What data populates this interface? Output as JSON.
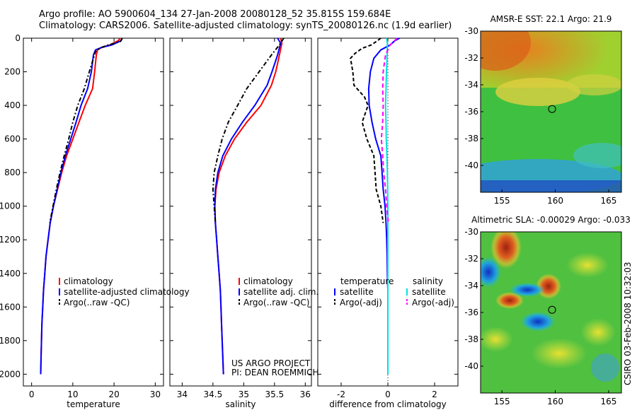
{
  "title_line1": "Argo profile: AO 5900604_134 27-Jan-2008 20080128_52 35.815S 159.684E",
  "title_line2": "Climatology: CARS2006. Satellite-adjusted climatology: synTS_20080126.nc (1.9d earlier)",
  "side_label": "CSIRO 03-Feb-2008 10:32:03",
  "colors": {
    "climatology": "#ff0000",
    "satellite": "#0000ff",
    "argo": "#000000",
    "sal_satellite": "#00e0e0",
    "sal_argo": "#ff00ff"
  },
  "chart_data": [
    {
      "type": "line",
      "xlabel": "temperature",
      "ylabel": "",
      "xlim": [
        -2,
        32
      ],
      "ylim": [
        2070,
        0
      ],
      "xticks": [
        0,
        10,
        20,
        30
      ],
      "yticks": [
        0,
        200,
        400,
        600,
        800,
        1000,
        1200,
        1400,
        1600,
        1800,
        2000
      ],
      "legend": [
        "climatology",
        "satellite-adjusted climatology",
        "Argo(..raw -QC)"
      ],
      "series": [
        {
          "name": "climatology",
          "color_key": "climatology",
          "dash": "",
          "points": [
            [
              21.5,
              0
            ],
            [
              21.0,
              15
            ],
            [
              19.0,
              40
            ],
            [
              17.0,
              55
            ],
            [
              16.0,
              70
            ],
            [
              15.7,
              100
            ],
            [
              15.3,
              200
            ],
            [
              14.8,
              300
            ],
            [
              13.0,
              400
            ],
            [
              11.5,
              500
            ],
            [
              10.0,
              600
            ],
            [
              8.5,
              700
            ],
            [
              7.3,
              800
            ],
            [
              6.3,
              900
            ],
            [
              5.3,
              1000
            ],
            [
              4.5,
              1100
            ],
            [
              4.0,
              1200
            ],
            [
              3.5,
              1300
            ],
            [
              3.2,
              1400
            ],
            [
              2.9,
              1500
            ],
            [
              2.7,
              1600
            ],
            [
              2.5,
              1700
            ],
            [
              2.4,
              1800
            ],
            [
              2.3,
              1900
            ],
            [
              2.2,
              2000
            ]
          ]
        },
        {
          "name": "satellite-adjusted climatology",
          "color_key": "satellite",
          "dash": "",
          "points": [
            [
              22.0,
              0
            ],
            [
              21.7,
              15
            ],
            [
              19.5,
              40
            ],
            [
              17.0,
              55
            ],
            [
              15.5,
              70
            ],
            [
              15.0,
              100
            ],
            [
              14.5,
              200
            ],
            [
              13.6,
              300
            ],
            [
              12.0,
              400
            ],
            [
              10.8,
              500
            ],
            [
              9.5,
              600
            ],
            [
              8.2,
              700
            ],
            [
              7.1,
              800
            ],
            [
              6.2,
              900
            ],
            [
              5.3,
              1000
            ],
            [
              4.5,
              1100
            ],
            [
              4.0,
              1200
            ],
            [
              3.5,
              1300
            ],
            [
              3.2,
              1400
            ],
            [
              2.9,
              1500
            ],
            [
              2.7,
              1600
            ],
            [
              2.5,
              1700
            ],
            [
              2.4,
              1800
            ],
            [
              2.3,
              1900
            ],
            [
              2.2,
              2000
            ]
          ]
        },
        {
          "name": "Argo(..raw -QC)",
          "color_key": "argo",
          "dash": "6,3,2,3",
          "points": [
            [
              22.0,
              0
            ],
            [
              21.5,
              20
            ],
            [
              18.0,
              45
            ],
            [
              16.5,
              60
            ],
            [
              15.5,
              80
            ],
            [
              15.0,
              120
            ],
            [
              14.0,
              200
            ],
            [
              12.8,
              300
            ],
            [
              11.2,
              400
            ],
            [
              10.0,
              500
            ],
            [
              9.0,
              600
            ],
            [
              7.9,
              700
            ],
            [
              6.9,
              800
            ],
            [
              6.0,
              900
            ],
            [
              5.2,
              1000
            ],
            [
              4.4,
              1100
            ]
          ]
        }
      ]
    },
    {
      "type": "line",
      "xlabel": "salinity",
      "ylabel": "",
      "xlim": [
        33.8,
        36.1
      ],
      "ylim": [
        2070,
        0
      ],
      "xticks": [
        34,
        34.5,
        35,
        35.5,
        36
      ],
      "yticks": [],
      "legend": [
        "climatology",
        "satellite adj. clim.",
        "Argo(..raw -QC)"
      ],
      "series": [
        {
          "name": "climatology",
          "color_key": "climatology",
          "dash": "",
          "points": [
            [
              35.6,
              0
            ],
            [
              35.62,
              30
            ],
            [
              35.58,
              100
            ],
            [
              35.52,
              200
            ],
            [
              35.45,
              280
            ],
            [
              35.28,
              400
            ],
            [
              35.05,
              500
            ],
            [
              34.85,
              600
            ],
            [
              34.7,
              700
            ],
            [
              34.6,
              800
            ],
            [
              34.55,
              900
            ],
            [
              34.53,
              1000
            ],
            [
              34.54,
              1100
            ],
            [
              34.56,
              1200
            ],
            [
              34.58,
              1300
            ],
            [
              34.6,
              1400
            ],
            [
              34.62,
              1500
            ],
            [
              34.63,
              1600
            ],
            [
              34.64,
              1700
            ],
            [
              34.65,
              1800
            ],
            [
              34.66,
              1900
            ],
            [
              34.67,
              2000
            ]
          ]
        },
        {
          "name": "satellite adj. clim.",
          "color_key": "satellite",
          "dash": "",
          "points": [
            [
              35.55,
              0
            ],
            [
              35.6,
              30
            ],
            [
              35.55,
              100
            ],
            [
              35.46,
              200
            ],
            [
              35.38,
              280
            ],
            [
              35.18,
              400
            ],
            [
              34.98,
              500
            ],
            [
              34.8,
              600
            ],
            [
              34.66,
              700
            ],
            [
              34.58,
              800
            ],
            [
              34.54,
              900
            ],
            [
              34.53,
              1000
            ],
            [
              34.54,
              1100
            ],
            [
              34.56,
              1200
            ],
            [
              34.58,
              1300
            ],
            [
              34.6,
              1400
            ],
            [
              34.62,
              1500
            ],
            [
              34.63,
              1600
            ],
            [
              34.64,
              1700
            ],
            [
              34.65,
              1800
            ],
            [
              34.66,
              1900
            ],
            [
              34.67,
              2000
            ]
          ]
        },
        {
          "name": "Argo(..raw -QC)",
          "color_key": "argo",
          "dash": "6,3,2,3",
          "points": [
            [
              35.65,
              0
            ],
            [
              35.58,
              40
            ],
            [
              35.45,
              100
            ],
            [
              35.25,
              200
            ],
            [
              35.05,
              300
            ],
            [
              34.9,
              400
            ],
            [
              34.75,
              500
            ],
            [
              34.65,
              600
            ],
            [
              34.58,
              700
            ],
            [
              34.52,
              800
            ],
            [
              34.5,
              900
            ],
            [
              34.52,
              1000
            ],
            [
              34.54,
              1100
            ]
          ]
        }
      ]
    },
    {
      "type": "line",
      "xlabel": "difference from climatology",
      "ylabel": "",
      "xlim": [
        -3,
        3
      ],
      "ylim": [
        2070,
        0
      ],
      "xticks": [
        -2,
        0,
        2
      ],
      "yticks": [],
      "legend_temperature_title": "temperature",
      "legend_salinity_title": "salinity",
      "legend_temperature": [
        "satellite",
        "Argo(-adj)"
      ],
      "legend_salinity": [
        "satellite",
        "Argo(-adj)"
      ],
      "series": [
        {
          "name": "temperature satellite",
          "color_key": "satellite",
          "dash": "",
          "points": [
            [
              0.5,
              0
            ],
            [
              0.3,
              15
            ],
            [
              0.1,
              40
            ],
            [
              -0.3,
              70
            ],
            [
              -0.6,
              120
            ],
            [
              -0.75,
              200
            ],
            [
              -0.82,
              300
            ],
            [
              -0.8,
              400
            ],
            [
              -0.68,
              500
            ],
            [
              -0.52,
              600
            ],
            [
              -0.3,
              700
            ],
            [
              -0.25,
              800
            ],
            [
              -0.2,
              900
            ],
            [
              -0.12,
              1000
            ],
            [
              -0.08,
              1100
            ],
            [
              -0.05,
              1200
            ],
            [
              -0.03,
              1300
            ],
            [
              -0.02,
              1400
            ],
            [
              0,
              1500
            ],
            [
              0,
              1600
            ],
            [
              0,
              1700
            ],
            [
              0,
              1800
            ],
            [
              0,
              1900
            ],
            [
              0,
              2000
            ]
          ]
        },
        {
          "name": "temperature Argo(-adj)",
          "color_key": "argo",
          "dash": "5,3",
          "points": [
            [
              -0.3,
              0
            ],
            [
              -0.7,
              40
            ],
            [
              -1.1,
              60
            ],
            [
              -1.4,
              90
            ],
            [
              -1.6,
              120
            ],
            [
              -1.5,
              200
            ],
            [
              -1.45,
              280
            ],
            [
              -1.0,
              350
            ],
            [
              -0.85,
              400
            ],
            [
              -1.1,
              500
            ],
            [
              -0.9,
              600
            ],
            [
              -0.6,
              700
            ],
            [
              -0.55,
              800
            ],
            [
              -0.5,
              900
            ],
            [
              -0.3,
              1000
            ],
            [
              -0.2,
              1100
            ]
          ]
        },
        {
          "name": "salinity satellite",
          "color_key": "sal_satellite",
          "dash": "",
          "points": [
            [
              -0.05,
              0
            ],
            [
              -0.02,
              30
            ],
            [
              -0.03,
              100
            ],
            [
              -0.06,
              200
            ],
            [
              -0.08,
              300
            ],
            [
              -0.1,
              400
            ],
            [
              -0.08,
              500
            ],
            [
              -0.07,
              600
            ],
            [
              -0.04,
              700
            ],
            [
              -0.02,
              800
            ],
            [
              -0.01,
              900
            ],
            [
              0,
              1000
            ],
            [
              0,
              1100
            ],
            [
              0,
              1200
            ],
            [
              0,
              1300
            ],
            [
              0,
              1400
            ],
            [
              0,
              1500
            ],
            [
              0,
              1600
            ],
            [
              0,
              1700
            ],
            [
              0,
              1800
            ],
            [
              0,
              1900
            ],
            [
              0,
              2000
            ]
          ]
        },
        {
          "name": "salinity Argo(-adj)",
          "color_key": "sal_argo",
          "dash": "6,4",
          "points": [
            [
              0.4,
              0
            ],
            [
              0.1,
              40
            ],
            [
              -0.1,
              100
            ],
            [
              -0.2,
              200
            ],
            [
              -0.22,
              300
            ],
            [
              -0.2,
              400
            ],
            [
              -0.22,
              500
            ],
            [
              -0.28,
              600
            ],
            [
              -0.22,
              700
            ],
            [
              -0.18,
              800
            ],
            [
              -0.1,
              900
            ],
            [
              -0.05,
              1000
            ],
            [
              0.02,
              1100
            ]
          ]
        }
      ]
    },
    {
      "type": "heatmap",
      "title": "AMSR-E SST: 22.1 Argo: 21.9",
      "xlim": [
        153,
        166.2
      ],
      "ylim": [
        -42,
        -30
      ],
      "xticks": [
        155,
        160,
        165
      ],
      "yticks": [
        -30,
        -32,
        -34,
        -36,
        -38,
        -40
      ],
      "marker": [
        159.7,
        -35.8
      ]
    },
    {
      "type": "heatmap",
      "title": "Altimetric SLA: -0.00029 Argo: -0.033",
      "xlim": [
        153,
        166.2
      ],
      "ylim": [
        -42,
        -30
      ],
      "xticks": [
        155,
        160,
        165
      ],
      "yticks": [
        -30,
        -32,
        -34,
        -36,
        -38,
        -40
      ],
      "marker": [
        159.7,
        -35.8
      ]
    }
  ]
}
